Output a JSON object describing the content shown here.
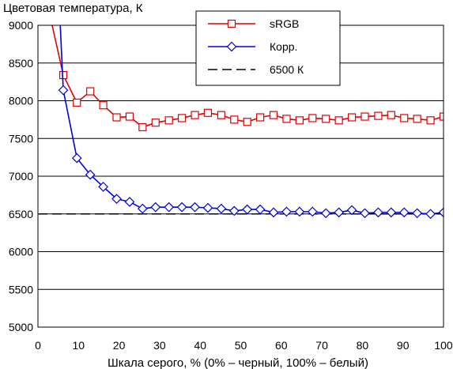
{
  "chart_data": {
    "type": "line",
    "title": "",
    "ylabel": "Цветовая температура, К",
    "xlabel": "Шкала серого, % (0% – черный, 100% – белый)",
    "xlim": [
      0,
      100
    ],
    "ylim": [
      5000,
      9000
    ],
    "xticks": [
      0,
      10,
      20,
      30,
      40,
      50,
      60,
      70,
      80,
      90,
      100
    ],
    "yticks": [
      5000,
      5500,
      6000,
      6500,
      7000,
      7500,
      8000,
      8500,
      9000
    ],
    "grid": "horizontal",
    "legend_position": "top-center",
    "series": [
      {
        "name": "sRGB",
        "color": "#e00000",
        "marker": "square",
        "x": [
          3.5,
          6.25,
          9.6,
          12.9,
          16.1,
          19.4,
          22.6,
          25.8,
          29.0,
          32.3,
          35.5,
          38.7,
          41.9,
          45.2,
          48.4,
          51.6,
          54.8,
          58.1,
          61.3,
          64.5,
          67.7,
          71.0,
          74.2,
          77.4,
          80.6,
          83.9,
          87.1,
          90.3,
          93.5,
          96.8,
          100
        ],
        "values": [
          9000,
          8340,
          7975,
          8125,
          7940,
          7780,
          7790,
          7650,
          7710,
          7740,
          7770,
          7810,
          7840,
          7810,
          7750,
          7720,
          7780,
          7810,
          7760,
          7740,
          7770,
          7760,
          7740,
          7780,
          7790,
          7800,
          7810,
          7770,
          7760,
          7740,
          7790
        ]
      },
      {
        "name": "Корр.",
        "color": "#0000dd",
        "marker": "diamond",
        "x": [
          5.5,
          6.25,
          9.6,
          12.9,
          16.1,
          19.4,
          22.6,
          25.8,
          29.0,
          32.3,
          35.5,
          38.7,
          41.9,
          45.2,
          48.4,
          51.6,
          54.8,
          58.1,
          61.3,
          64.5,
          67.7,
          71.0,
          74.2,
          77.4,
          80.6,
          83.9,
          87.1,
          90.3,
          93.5,
          96.8,
          100
        ],
        "values": [
          9000,
          8140,
          7240,
          7020,
          6860,
          6700,
          6660,
          6570,
          6590,
          6590,
          6590,
          6590,
          6580,
          6570,
          6540,
          6560,
          6560,
          6520,
          6530,
          6530,
          6530,
          6510,
          6520,
          6550,
          6510,
          6520,
          6520,
          6520,
          6510,
          6500,
          6520
        ]
      },
      {
        "name": "6500 К",
        "color": "#000000",
        "dash": "dashed",
        "x": [
          0,
          100
        ],
        "values": [
          6500,
          6500
        ]
      }
    ]
  }
}
